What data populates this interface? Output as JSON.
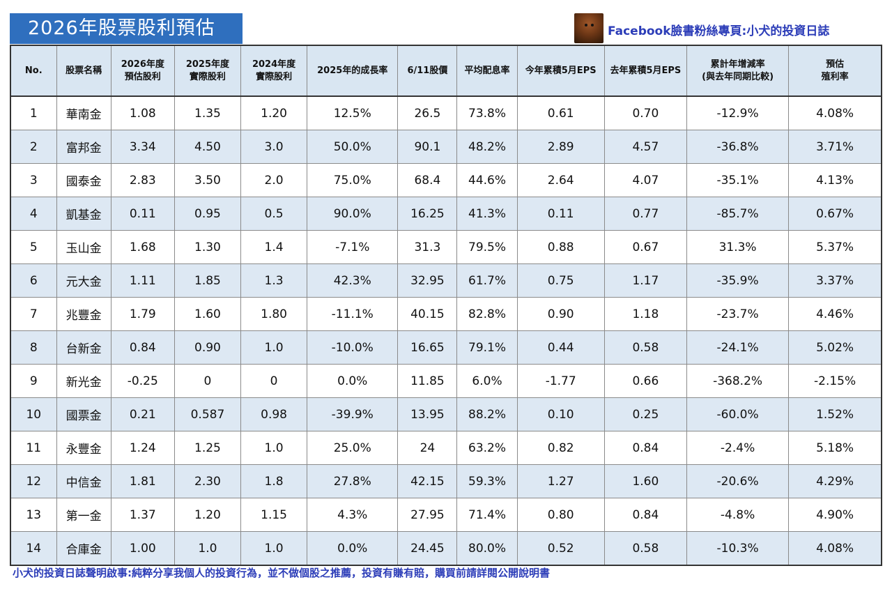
{
  "title": "2026年股票股利預估",
  "facebook_label": "Facebook臉書粉絲專頁:小犬的投資日誌",
  "headers": [
    {
      "line1": "No.",
      "line2": ""
    },
    {
      "line1": "股票名稱",
      "line2": ""
    },
    {
      "line1": "2026年度",
      "line2": "預估股利"
    },
    {
      "line1": "2025年度",
      "line2": "實際股利"
    },
    {
      "line1": "2024年度",
      "line2": "實際股利"
    },
    {
      "line1": "2025年的成長率",
      "line2": ""
    },
    {
      "line1": "6/11股價",
      "line2": ""
    },
    {
      "line1": "平均配息率",
      "line2": ""
    },
    {
      "line1": "今年累積5月EPS",
      "line2": ""
    },
    {
      "line1": "去年累積5月EPS",
      "line2": ""
    },
    {
      "line1": "累計年增減率",
      "line2": "(與去年同期比較)"
    },
    {
      "line1": "預估",
      "line2": "殖利率"
    }
  ],
  "rows": [
    [
      "1",
      "華南金",
      "1.08",
      "1.35",
      "1.20",
      "12.5%",
      "26.5",
      "73.8%",
      "0.61",
      "0.70",
      "-12.9%",
      "4.08%"
    ],
    [
      "2",
      "富邦金",
      "3.34",
      "4.50",
      "3.0",
      "50.0%",
      "90.1",
      "48.2%",
      "2.89",
      "4.57",
      "-36.8%",
      "3.71%"
    ],
    [
      "3",
      "國泰金",
      "2.83",
      "3.50",
      "2.0",
      "75.0%",
      "68.4",
      "44.6%",
      "2.64",
      "4.07",
      "-35.1%",
      "4.13%"
    ],
    [
      "4",
      "凱基金",
      "0.11",
      "0.95",
      "0.5",
      "90.0%",
      "16.25",
      "41.3%",
      "0.11",
      "0.77",
      "-85.7%",
      "0.67%"
    ],
    [
      "5",
      "玉山金",
      "1.68",
      "1.30",
      "1.4",
      "-7.1%",
      "31.3",
      "79.5%",
      "0.88",
      "0.67",
      "31.3%",
      "5.37%"
    ],
    [
      "6",
      "元大金",
      "1.11",
      "1.85",
      "1.3",
      "42.3%",
      "32.95",
      "61.7%",
      "0.75",
      "1.17",
      "-35.9%",
      "3.37%"
    ],
    [
      "7",
      "兆豐金",
      "1.79",
      "1.60",
      "1.80",
      "-11.1%",
      "40.15",
      "82.8%",
      "0.90",
      "1.18",
      "-23.7%",
      "4.46%"
    ],
    [
      "8",
      "台新金",
      "0.84",
      "0.90",
      "1.0",
      "-10.0%",
      "16.65",
      "79.1%",
      "0.44",
      "0.58",
      "-24.1%",
      "5.02%"
    ],
    [
      "9",
      "新光金",
      "-0.25",
      "0",
      "0",
      "0.0%",
      "11.85",
      "6.0%",
      "-1.77",
      "0.66",
      "-368.2%",
      "-2.15%"
    ],
    [
      "10",
      "國票金",
      "0.21",
      "0.587",
      "0.98",
      "-39.9%",
      "13.95",
      "88.2%",
      "0.10",
      "0.25",
      "-60.0%",
      "1.52%"
    ],
    [
      "11",
      "永豐金",
      "1.24",
      "1.25",
      "1.0",
      "25.0%",
      "24",
      "63.2%",
      "0.82",
      "0.84",
      "-2.4%",
      "5.18%"
    ],
    [
      "12",
      "中信金",
      "1.81",
      "2.30",
      "1.8",
      "27.8%",
      "42.15",
      "59.3%",
      "1.27",
      "1.60",
      "-20.6%",
      "4.29%"
    ],
    [
      "13",
      "第一金",
      "1.37",
      "1.20",
      "1.15",
      "4.3%",
      "27.95",
      "71.4%",
      "0.80",
      "0.84",
      "-4.8%",
      "4.90%"
    ],
    [
      "14",
      "合庫金",
      "1.00",
      "1.0",
      "1.0",
      "0.0%",
      "24.45",
      "80.0%",
      "0.52",
      "0.58",
      "-10.3%",
      "4.08%"
    ]
  ],
  "disclaimer": "小犬的投資日誌聲明啟事:純粹分享我個人的投資行為，並不做個股之推薦，投資有賺有賠，購買前請詳閱公開說明書",
  "colors": {
    "title_bg": "#2f6fbe",
    "header_bg": "#d9e6f2",
    "alt_row_bg": "#dde8f3",
    "accent_text": "#2c3db8"
  }
}
